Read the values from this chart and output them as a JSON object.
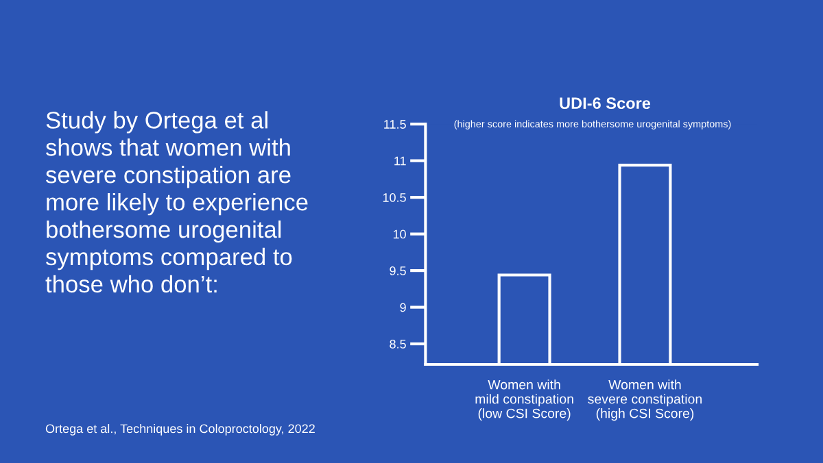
{
  "chart_data": {
    "type": "bar",
    "title": "UDI-6 Score",
    "subtitle": "(higher score indicates more bothersome urogenital symptoms)",
    "categories": [
      "Women with\nmild constipation\n(low CSI Score)",
      "Women with\nsevere constipation\n(high CSI Score)"
    ],
    "values": [
      9.44,
      10.94
    ],
    "color": "#ffffff",
    "ylim": [
      8.22,
      11.5
    ],
    "yticks": [
      8.5,
      9,
      9.5,
      10,
      10.5,
      11,
      11.5
    ],
    "grid": false,
    "annotations": [
      "Study by Ortega et al shows that women with severe constipation are more likely to experience bothersome urogenital symptoms compared to those who don’t:",
      "Ortega et al., Techniques in Coloproctology, 2022"
    ]
  }
}
